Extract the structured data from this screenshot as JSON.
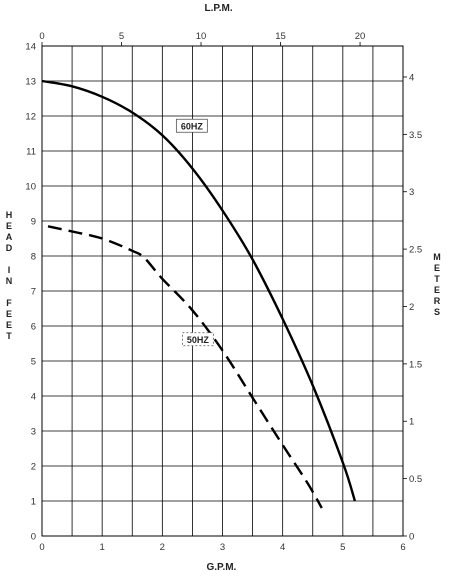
{
  "chart_data": {
    "type": "line",
    "x_bottom": {
      "label": "G.P.M.",
      "range": [
        0,
        6
      ],
      "ticks": [
        "0",
        "1",
        "2",
        "3",
        "4",
        "5",
        "6"
      ]
    },
    "x_top": {
      "label": "L.P.M.",
      "range": [
        0,
        22.7
      ],
      "ticks": [
        "0",
        "5",
        "10",
        "15",
        "20"
      ]
    },
    "y_left": {
      "label": "HEAD IN FEET",
      "range": [
        0,
        14
      ],
      "ticks": [
        "0",
        "1",
        "2",
        "3",
        "4",
        "5",
        "6",
        "7",
        "8",
        "9",
        "10",
        "11",
        "12",
        "13",
        "14"
      ]
    },
    "y_right": {
      "label": "METERS",
      "range": [
        0,
        4.27
      ],
      "ticks": [
        "0",
        "0.5",
        "1",
        "1.5",
        "2",
        "2.5",
        "3",
        "3.5",
        "4"
      ]
    },
    "grid": true,
    "series": [
      {
        "name": "60HZ",
        "style": "solid",
        "x": [
          0,
          0.5,
          1.0,
          1.5,
          2.0,
          2.5,
          3.0,
          3.5,
          4.0,
          4.5,
          5.0,
          5.2
        ],
        "y": [
          13.0,
          12.85,
          12.55,
          12.1,
          11.45,
          10.5,
          9.3,
          7.9,
          6.2,
          4.3,
          2.1,
          1.0
        ]
      },
      {
        "name": "50HZ",
        "style": "dashed",
        "x": [
          0.1,
          0.5,
          1.0,
          1.5,
          1.7,
          2.0,
          2.5,
          3.0,
          3.5,
          4.0,
          4.4,
          4.65
        ],
        "y": [
          8.85,
          8.7,
          8.5,
          8.15,
          7.95,
          7.35,
          6.45,
          5.3,
          3.95,
          2.6,
          1.55,
          0.8
        ]
      }
    ]
  }
}
